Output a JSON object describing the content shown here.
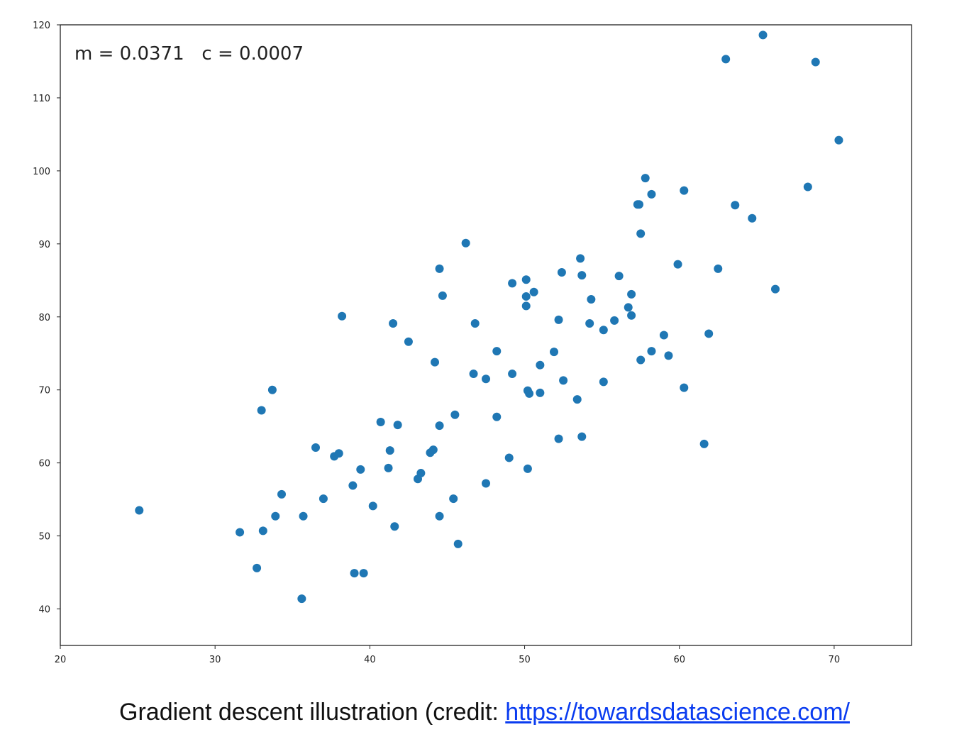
{
  "chart_data": {
    "type": "scatter",
    "annotation": "m = 0.0371   c = 0.0007",
    "xlim": [
      20,
      75
    ],
    "ylim": [
      35,
      120
    ],
    "xticks": [
      20,
      30,
      40,
      50,
      60,
      70
    ],
    "yticks": [
      40,
      50,
      60,
      70,
      80,
      90,
      100,
      110,
      120
    ],
    "grid": false,
    "point_color": "#1f77b4",
    "points": [
      [
        25.1,
        53.5
      ],
      [
        31.6,
        50.5
      ],
      [
        32.7,
        45.6
      ],
      [
        33.0,
        67.2
      ],
      [
        33.1,
        50.7
      ],
      [
        33.7,
        70.0
      ],
      [
        33.9,
        52.7
      ],
      [
        34.3,
        55.7
      ],
      [
        35.6,
        41.4
      ],
      [
        35.7,
        52.7
      ],
      [
        36.5,
        62.1
      ],
      [
        37.0,
        55.1
      ],
      [
        37.7,
        60.9
      ],
      [
        38.0,
        61.3
      ],
      [
        38.2,
        80.1
      ],
      [
        38.9,
        56.9
      ],
      [
        39.0,
        44.9
      ],
      [
        39.4,
        59.1
      ],
      [
        39.6,
        44.9
      ],
      [
        40.2,
        54.1
      ],
      [
        40.7,
        65.6
      ],
      [
        41.2,
        59.3
      ],
      [
        41.3,
        61.7
      ],
      [
        41.5,
        79.1
      ],
      [
        41.6,
        51.3
      ],
      [
        41.8,
        65.2
      ],
      [
        42.5,
        76.6
      ],
      [
        43.1,
        57.8
      ],
      [
        43.3,
        58.6
      ],
      [
        43.9,
        61.4
      ],
      [
        44.1,
        61.8
      ],
      [
        44.2,
        73.8
      ],
      [
        44.5,
        86.6
      ],
      [
        44.5,
        65.1
      ],
      [
        44.5,
        52.7
      ],
      [
        44.7,
        82.9
      ],
      [
        45.4,
        55.1
      ],
      [
        45.5,
        66.6
      ],
      [
        45.7,
        48.9
      ],
      [
        46.2,
        90.1
      ],
      [
        46.7,
        72.2
      ],
      [
        46.8,
        79.1
      ],
      [
        47.5,
        71.5
      ],
      [
        47.5,
        57.2
      ],
      [
        48.2,
        75.3
      ],
      [
        48.2,
        66.3
      ],
      [
        49.0,
        60.7
      ],
      [
        49.2,
        84.6
      ],
      [
        49.2,
        72.2
      ],
      [
        50.1,
        85.1
      ],
      [
        50.1,
        82.8
      ],
      [
        50.1,
        81.5
      ],
      [
        50.2,
        69.9
      ],
      [
        50.2,
        59.2
      ],
      [
        50.3,
        69.5
      ],
      [
        50.6,
        83.4
      ],
      [
        51.0,
        73.4
      ],
      [
        51.0,
        69.6
      ],
      [
        51.9,
        75.2
      ],
      [
        52.2,
        79.6
      ],
      [
        52.2,
        63.3
      ],
      [
        52.4,
        86.1
      ],
      [
        52.5,
        71.3
      ],
      [
        53.4,
        68.7
      ],
      [
        53.6,
        88.0
      ],
      [
        53.7,
        85.7
      ],
      [
        53.7,
        63.6
      ],
      [
        54.2,
        79.1
      ],
      [
        54.3,
        82.4
      ],
      [
        55.1,
        78.2
      ],
      [
        55.1,
        71.1
      ],
      [
        55.8,
        79.5
      ],
      [
        56.1,
        85.6
      ],
      [
        56.7,
        81.3
      ],
      [
        56.9,
        83.1
      ],
      [
        56.9,
        80.2
      ],
      [
        57.3,
        95.4
      ],
      [
        57.4,
        95.4
      ],
      [
        57.5,
        91.4
      ],
      [
        57.5,
        74.1
      ],
      [
        57.8,
        99.0
      ],
      [
        58.2,
        96.8
      ],
      [
        58.2,
        75.3
      ],
      [
        59.0,
        77.5
      ],
      [
        59.3,
        74.7
      ],
      [
        59.9,
        87.2
      ],
      [
        60.3,
        97.3
      ],
      [
        60.3,
        70.3
      ],
      [
        61.6,
        62.6
      ],
      [
        61.9,
        77.7
      ],
      [
        62.5,
        86.6
      ],
      [
        63.0,
        115.3
      ],
      [
        63.6,
        95.3
      ],
      [
        64.7,
        93.5
      ],
      [
        65.4,
        118.6
      ],
      [
        66.2,
        83.8
      ],
      [
        68.3,
        97.8
      ],
      [
        68.8,
        114.9
      ],
      [
        70.3,
        104.2
      ]
    ]
  },
  "caption": {
    "text": "Gradient descent illustration (credit: ",
    "link": "https://towardsdatascience.com/"
  }
}
